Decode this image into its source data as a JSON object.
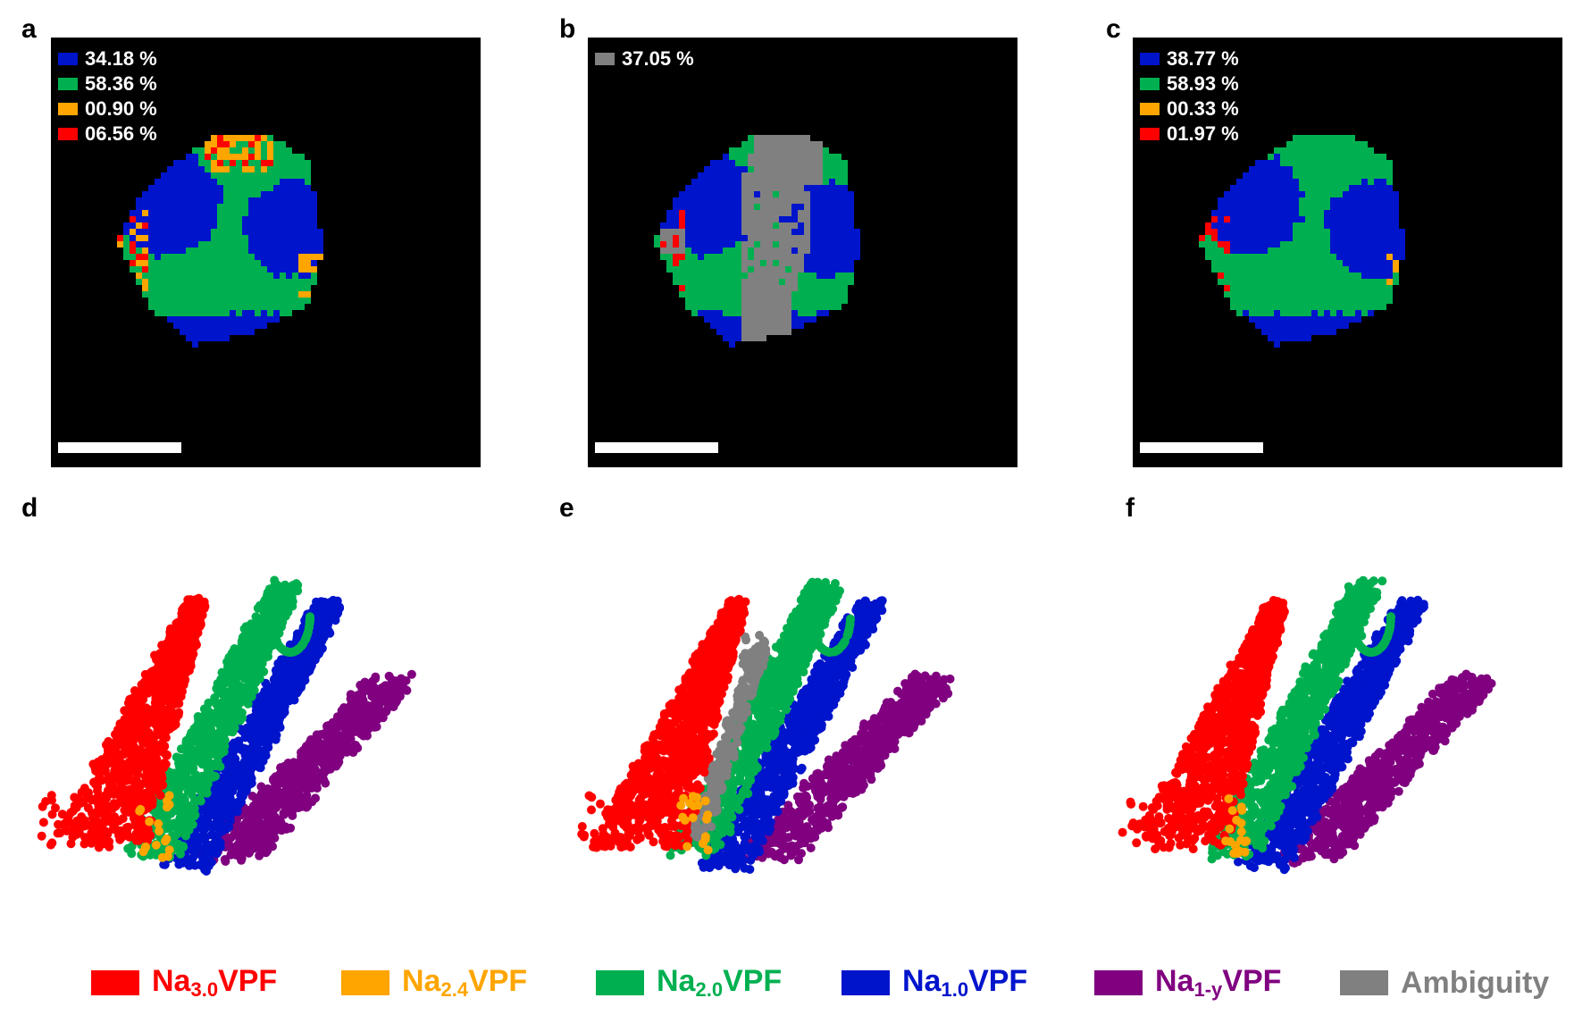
{
  "panels": {
    "a": {
      "letter": "a"
    },
    "b": {
      "letter": "b"
    },
    "c": {
      "letter": "c"
    },
    "d": {
      "letter": "d"
    },
    "e": {
      "letter": "e"
    },
    "f": {
      "letter": "f"
    }
  },
  "map_legends": {
    "a": [
      {
        "color": "#0014cc",
        "text": "34.18 %"
      },
      {
        "color": "#00b050",
        "text": "58.36 %"
      },
      {
        "color": "#ffa500",
        "text": "00.90 %"
      },
      {
        "color": "#ff0000",
        "text": "06.56 %"
      }
    ],
    "b": [
      {
        "color": "#808080",
        "text": "37.05 %"
      }
    ],
    "c": [
      {
        "color": "#0014cc",
        "text": "38.77 %"
      },
      {
        "color": "#00b050",
        "text": "58.93 %"
      },
      {
        "color": "#ffa500",
        "text": "00.33 %"
      },
      {
        "color": "#ff0000",
        "text": "01.97 %"
      }
    ]
  },
  "bottom_legend": [
    {
      "base": "Na",
      "sub": "3.0",
      "suffix": "VPF",
      "color": "#ff0000"
    },
    {
      "base": "Na",
      "sub": "2.4",
      "suffix": "VPF",
      "color": "#ffa500"
    },
    {
      "base": "Na",
      "sub": "2.0",
      "suffix": "VPF",
      "color": "#00b050"
    },
    {
      "base": "Na",
      "sub": "1.0",
      "suffix": "VPF",
      "color": "#0014cc"
    },
    {
      "base": "Na",
      "sub": "1-y",
      "suffix": "VPF",
      "color": "#800080"
    },
    {
      "base": "Ambiguity",
      "sub": "",
      "suffix": "",
      "color": "#808080"
    }
  ],
  "colors": {
    "na30": "#ff0000",
    "na24": "#ffa500",
    "na20": "#00b050",
    "na10": "#0014cc",
    "na1y": "#800080",
    "ambiguity": "#808080",
    "background": "#000000"
  }
}
